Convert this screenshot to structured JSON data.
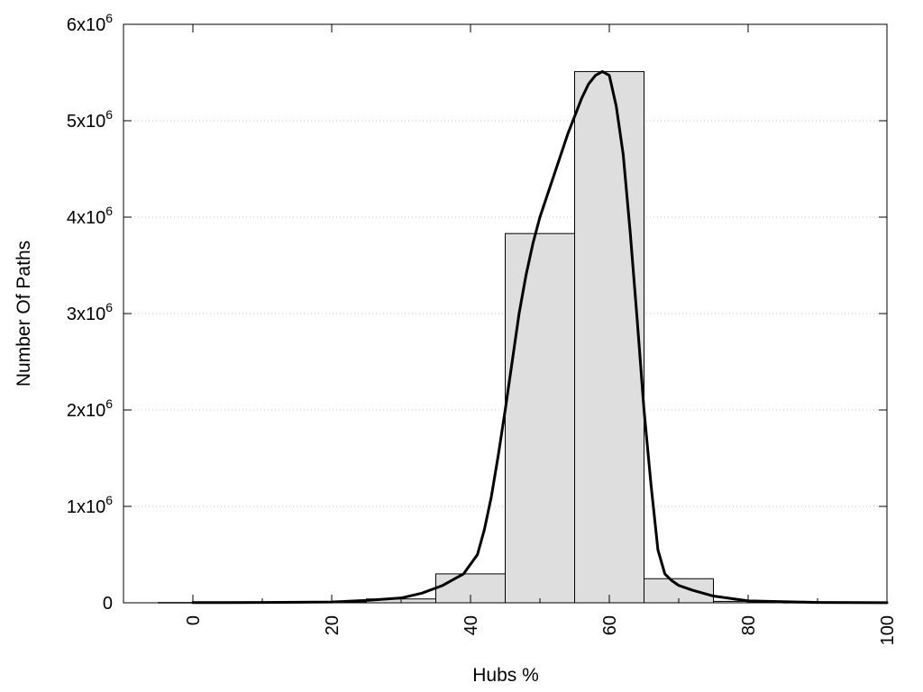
{
  "chart_data": {
    "type": "bar",
    "xlabel": "Hubs %",
    "ylabel": "Number Of Paths",
    "xlim": [
      -10,
      100
    ],
    "ylim": [
      0,
      6000000
    ],
    "grid": true,
    "x_ticks": [
      {
        "value": 0,
        "label": "0"
      },
      {
        "value": 20,
        "label": "20"
      },
      {
        "value": 40,
        "label": "40"
      },
      {
        "value": 60,
        "label": "60"
      },
      {
        "value": 80,
        "label": "80"
      },
      {
        "value": 100,
        "label": "100"
      }
    ],
    "y_ticks": [
      {
        "value": 0,
        "base": "0",
        "sup": ""
      },
      {
        "value": 1000000,
        "base": "1x10",
        "sup": "6"
      },
      {
        "value": 2000000,
        "base": "2x10",
        "sup": "6"
      },
      {
        "value": 3000000,
        "base": "3x10",
        "sup": "6"
      },
      {
        "value": 4000000,
        "base": "4x10",
        "sup": "6"
      },
      {
        "value": 5000000,
        "base": "5x10",
        "sup": "6"
      },
      {
        "value": 6000000,
        "base": "6x10",
        "sup": "6"
      }
    ],
    "histogram": {
      "bin_width": 10,
      "centers": [
        0,
        10,
        20,
        30,
        40,
        50,
        60,
        70,
        80,
        90
      ],
      "values": [
        3000,
        5000,
        10000,
        40000,
        300000,
        3830000,
        5510000,
        250000,
        15000,
        3000
      ],
      "fill": "#dedede",
      "stroke": "#000000"
    },
    "curve": {
      "x": [
        0,
        10,
        20,
        25,
        30,
        33,
        36,
        39,
        41,
        42,
        43,
        44,
        45,
        46,
        47,
        48,
        49,
        50,
        52,
        54,
        56,
        57,
        58,
        59,
        60,
        61,
        62,
        63,
        64,
        65,
        66,
        67,
        68,
        69,
        70,
        72,
        75,
        80,
        90,
        100
      ],
      "y": [
        2000,
        3000,
        8000,
        25000,
        50000,
        100000,
        180000,
        300000,
        500000,
        760000,
        1100000,
        1530000,
        2000000,
        2500000,
        3000000,
        3400000,
        3730000,
        4000000,
        4430000,
        4860000,
        5230000,
        5380000,
        5470000,
        5510000,
        5470000,
        5150000,
        4650000,
        3850000,
        2950000,
        2000000,
        1230000,
        550000,
        300000,
        230000,
        180000,
        130000,
        70000,
        20000,
        4000,
        1000
      ],
      "stroke": "#000000"
    }
  }
}
